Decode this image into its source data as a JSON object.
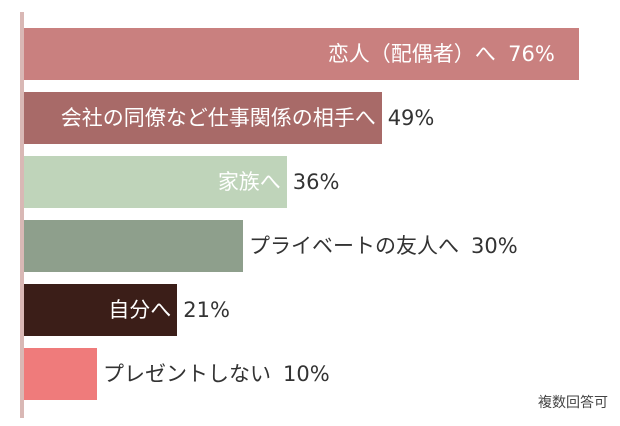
{
  "chart_data": {
    "type": "bar",
    "orientation": "horizontal",
    "xlim": [
      0,
      100
    ],
    "categories": [
      "恋人（配偶者）へ",
      "会社の同僚など仕事関係の相手へ",
      "家族へ",
      "プライベートの友人へ",
      "自分へ",
      "プレゼントしない"
    ],
    "values": [
      76,
      49,
      36,
      30,
      21,
      10
    ],
    "value_labels": [
      "76%",
      "49%",
      "36%",
      "30%",
      "21%",
      "10%"
    ],
    "colors": [
      "#c9807f",
      "#a86a68",
      "#bfd4ba",
      "#8e9f8c",
      "#3b1e18",
      "#ef7b7b"
    ],
    "label_inside": [
      true,
      true,
      true,
      false,
      true,
      false
    ],
    "note": "複数回答可"
  }
}
